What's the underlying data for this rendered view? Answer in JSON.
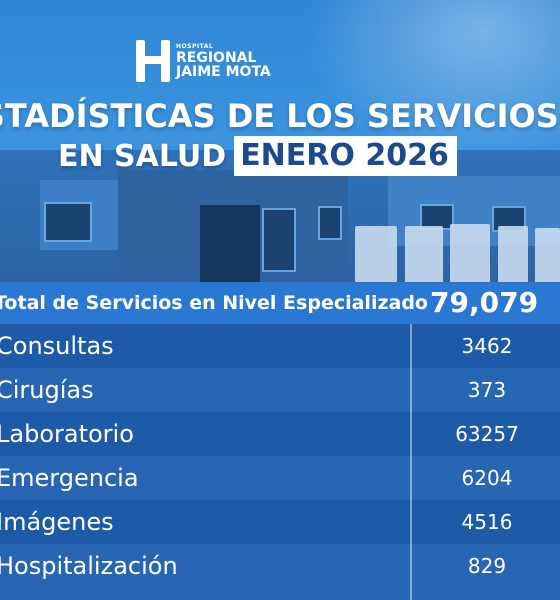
{
  "logo": {
    "line1": "HOSPITAL",
    "line2": "REGIONAL",
    "line3": "JAIME MOTA"
  },
  "title": {
    "line1": "ESTADÍSTICAS DE LOS SERVICIOS DE SALUD",
    "line2": "EN SALUD",
    "period": "ENERO 2026"
  },
  "total": {
    "label": "Total de Servicios en Nivel Especializado",
    "value": "79,079"
  },
  "rows": [
    {
      "name": "Consultas",
      "value": "3462"
    },
    {
      "name": "Cirugías",
      "value": "373"
    },
    {
      "name": "Laboratorio",
      "value": "63257"
    },
    {
      "name": "Emergencia",
      "value": "6204"
    },
    {
      "name": "Imágenes",
      "value": "4516"
    },
    {
      "name": "Hospitalización",
      "value": "829"
    }
  ],
  "colors": {
    "accent": "#2a78d2",
    "table_dark": "#1b4f9c",
    "table_light": "#2c63ad"
  },
  "icons": {
    "logo": "hospital-h-logo-icon"
  }
}
